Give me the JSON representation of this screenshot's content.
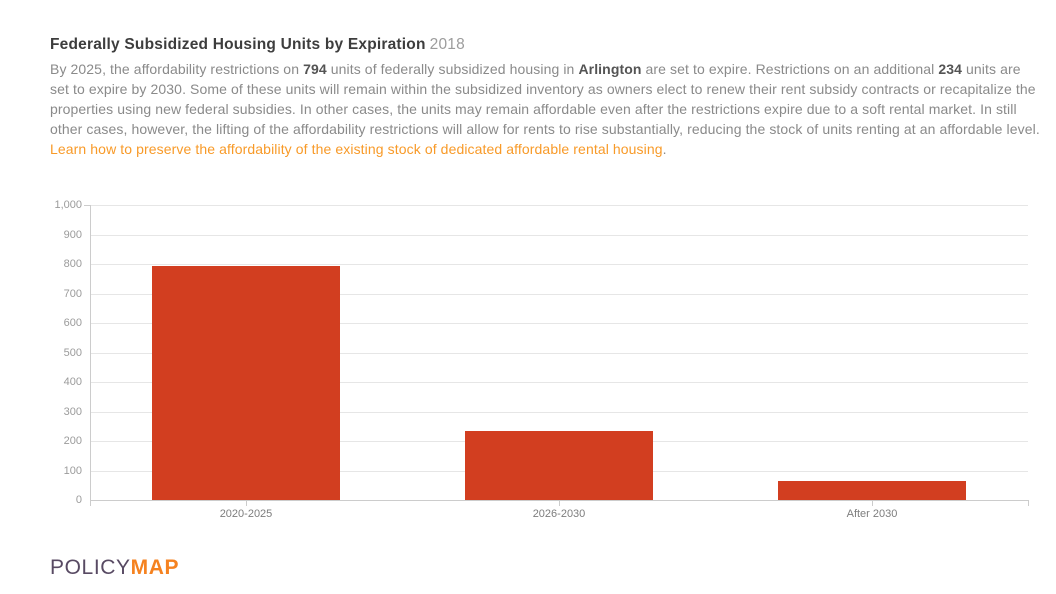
{
  "header": {
    "title": "Federally Subsidized Housing Units by Expiration",
    "year": "2018"
  },
  "paragraph": {
    "segments": [
      {
        "style": "normal",
        "text": "By 2025, the affordability restrictions on "
      },
      {
        "style": "bold",
        "text": "794"
      },
      {
        "style": "normal",
        "text": " units of federally subsidized housing in "
      },
      {
        "style": "bold",
        "text": "Arlington"
      },
      {
        "style": "normal",
        "text": " are set to expire. Restrictions on an additional "
      },
      {
        "style": "bold",
        "text": "234"
      },
      {
        "style": "normal",
        "text": " units are set to expire by 2030. Some of these units will remain within the subsidized inventory as owners elect to renew their rent subsidy contracts or recapitalize the properties using new federal subsidies. In other cases, the units may remain affordable even after the restrictions expire due to a soft rental market. In still other cases, however, the lifting of the affordability restrictions will allow for rents to rise substantially, reducing the stock of units renting at an affordable level. "
      },
      {
        "style": "link",
        "text": "Learn how to preserve the affordability of the existing stock of dedicated affordable rental housing"
      },
      {
        "style": "normal",
        "text": "."
      }
    ]
  },
  "chart_data": {
    "type": "bar",
    "title": "Federally Subsidized Housing Units by Expiration",
    "subtitle": "2018",
    "categories": [
      "2020-2025",
      "2026-2030",
      "After 2030"
    ],
    "values": [
      794,
      234,
      63
    ],
    "xlabel": "",
    "ylabel": "",
    "ylim": [
      0,
      1000
    ],
    "ytick_step": 100,
    "ytick_labels": [
      "0",
      "100",
      "200",
      "300",
      "400",
      "500",
      "600",
      "700",
      "800",
      "900",
      "1,000"
    ],
    "grid": true,
    "legend_position": "none",
    "bar_color": "#d23e20"
  },
  "footer": {
    "logo": {
      "part1": "POLICY",
      "part2": "MAP"
    }
  },
  "colors": {
    "bar_red": "#d23e20",
    "link_orange": "#f89a28",
    "logo_purple": "#584a63",
    "logo_orange": "#f58220",
    "title_gray": "#3d3d3d",
    "year_gray": "#9c9c9c",
    "body_gray": "#8a8a8a",
    "axis_gray": "#cccccc",
    "gridline_gray": "#e6e6e6"
  }
}
